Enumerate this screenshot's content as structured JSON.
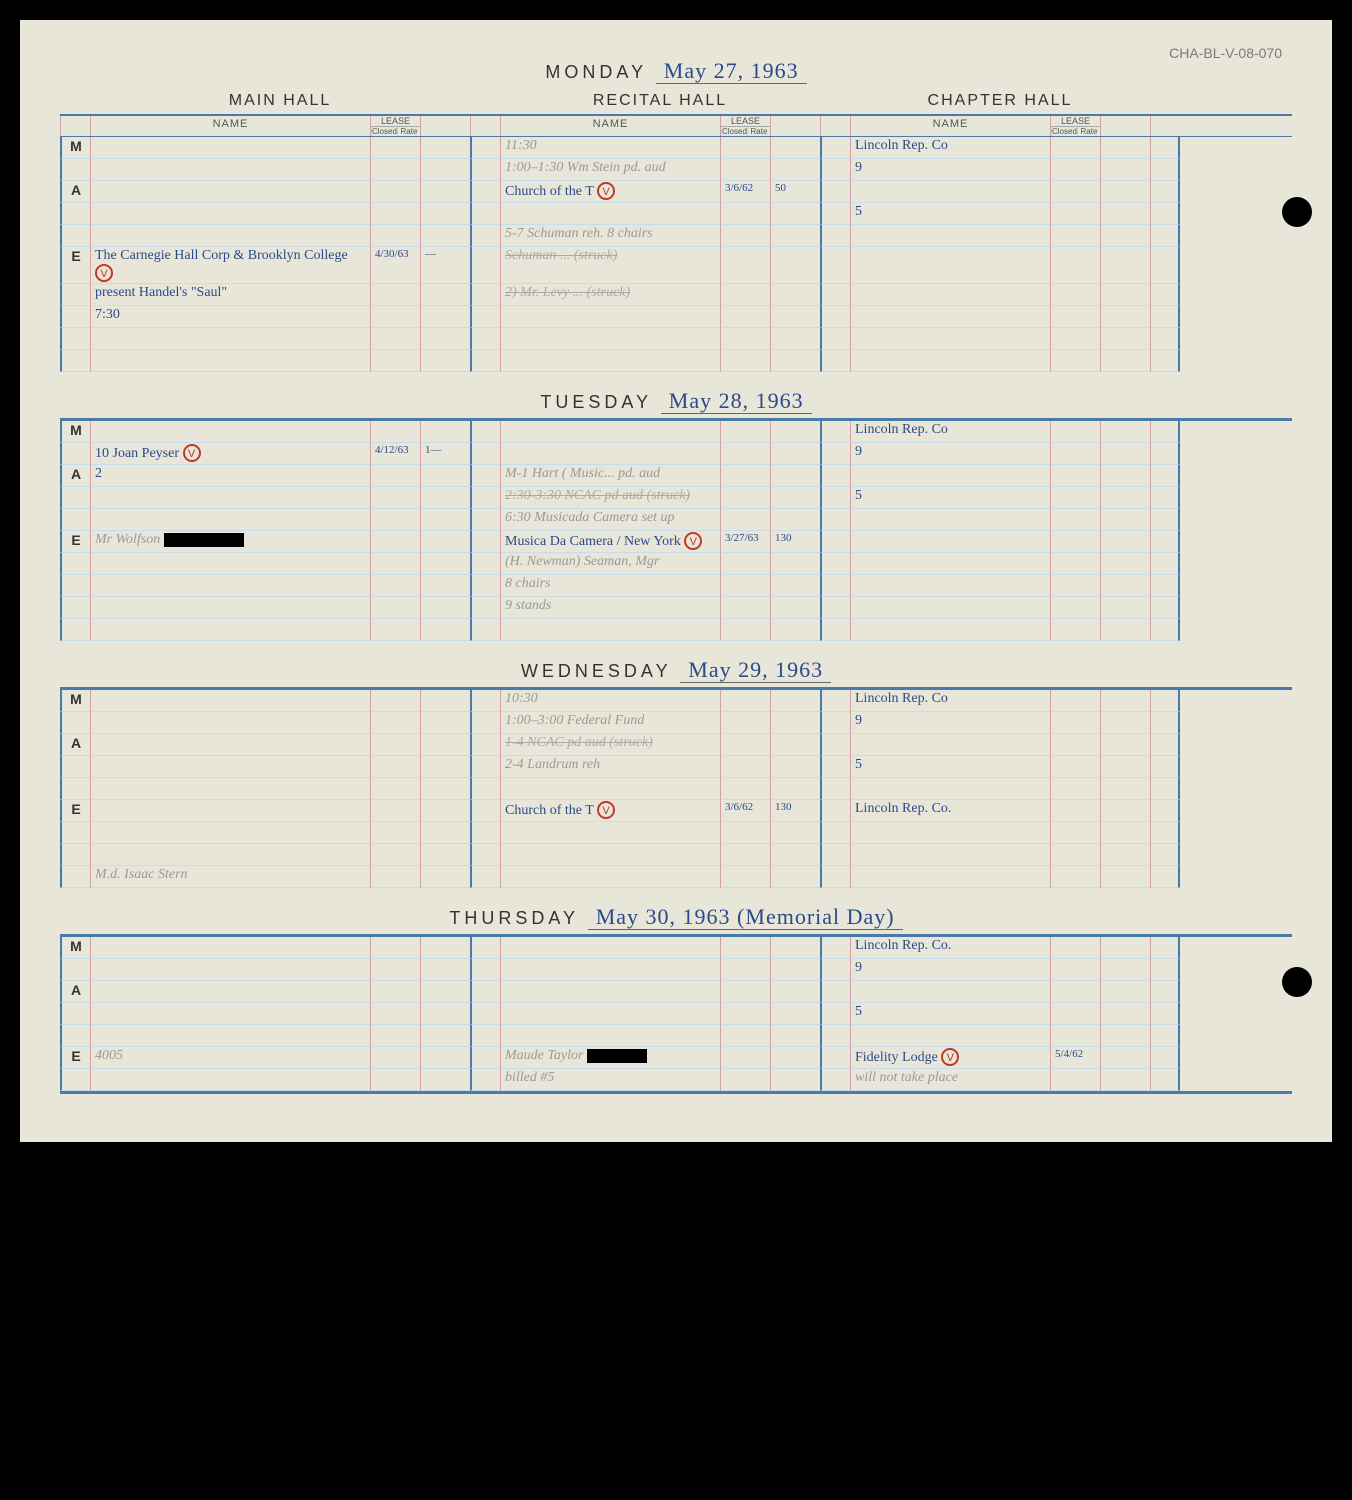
{
  "reference": "CHA-BL-V-08-070",
  "halls": {
    "main": "MAIN HALL",
    "recital": "RECITAL HALL",
    "chapter": "CHAPTER HALL"
  },
  "col_labels": {
    "name": "NAME",
    "lease": "LEASE",
    "closed": "Closed",
    "rate": "Rate"
  },
  "periods": {
    "m": "M",
    "a": "A",
    "e": "E"
  },
  "days": [
    {
      "label": "MONDAY",
      "date": "May 27, 1963",
      "rows": [
        {
          "p": "M",
          "main": "",
          "main_closed": "",
          "main_rate": "",
          "recital": "11:30",
          "recital_note": "pencil",
          "recital_closed": "",
          "recital_rate": "",
          "chapter": "Lincoln Rep. Co",
          "chapter_closed": "",
          "chapter_rate": ""
        },
        {
          "p": "",
          "main": "",
          "recital": "1:00–1:30 Wm Stein pd. aud",
          "recital_note": "pencil",
          "chapter": "9"
        },
        {
          "p": "A",
          "main": "",
          "recital": "Church of the T",
          "recital_mark": "V",
          "recital_closed": "3/6/62",
          "recital_rate": "50",
          "chapter": ""
        },
        {
          "p": "",
          "main": "",
          "recital": "",
          "chapter": "5"
        },
        {
          "p": "",
          "main": "",
          "recital": "5-7 Schuman reh. 8 chairs",
          "recital_note": "pencil",
          "chapter": ""
        },
        {
          "p": "E",
          "main": "The Carnegie Hall Corp & Brooklyn College",
          "main_mark": "V",
          "main_closed": "4/30/63",
          "main_rate": "—",
          "recital": "Schuman ... (struck)",
          "recital_note": "struck",
          "chapter": ""
        },
        {
          "p": "",
          "main": "present Handel's \"Saul\"",
          "recital": "2) Mr. Levy ... (struck)",
          "recital_note": "struck",
          "chapter": ""
        },
        {
          "p": "",
          "main": "7:30",
          "recital": "",
          "chapter": ""
        },
        {
          "p": "",
          "main": "",
          "recital": "",
          "chapter": ""
        },
        {
          "p": "",
          "main": "",
          "recital": "",
          "chapter": ""
        }
      ]
    },
    {
      "label": "TUESDAY",
      "date": "May 28, 1963",
      "rows": [
        {
          "p": "M",
          "main": "",
          "recital": "",
          "chapter": "Lincoln Rep. Co"
        },
        {
          "p": "",
          "main": "10  Joan Peyser",
          "main_mark": "V",
          "main_closed": "4/12/63",
          "main_rate": "1—",
          "recital": "",
          "chapter": "9"
        },
        {
          "p": "A",
          "main": "2",
          "recital": "M-1 Hart ( Music... pd. aud",
          "recital_note": "pencil",
          "chapter": ""
        },
        {
          "p": "",
          "main": "",
          "recital": "2:30-3:30 NCAC pd aud (struck)",
          "recital_note": "struck",
          "chapter": "5"
        },
        {
          "p": "",
          "main": "",
          "recital": "6:30 Musicada Camera set up",
          "recital_note": "pencil",
          "chapter": ""
        },
        {
          "p": "E",
          "main": "Mr Wolfson [REDACTED]",
          "main_note": "pencil",
          "main_redact": 80,
          "recital": "Musica Da Camera / New York",
          "recital_mark": "V",
          "recital_closed": "3/27/63",
          "recital_rate": "130",
          "chapter": ""
        },
        {
          "p": "",
          "main": "",
          "recital": "(H. Newman)  Seaman, Mgr",
          "recital_note": "pencil",
          "chapter": ""
        },
        {
          "p": "",
          "main": "",
          "recital": "8 chairs",
          "recital_note": "pencil",
          "chapter": ""
        },
        {
          "p": "",
          "main": "",
          "recital": "9 stands",
          "recital_note": "pencil",
          "chapter": ""
        },
        {
          "p": "",
          "main": "",
          "recital": "",
          "chapter": ""
        }
      ]
    },
    {
      "label": "WEDNESDAY",
      "date": "May 29, 1963",
      "rows": [
        {
          "p": "M",
          "main": "",
          "recital": "10:30",
          "recital_note": "pencil",
          "chapter": "Lincoln Rep. Co"
        },
        {
          "p": "",
          "main": "",
          "recital": "1:00–3:00 Federal Fund",
          "recital_note": "pencil",
          "chapter": "9"
        },
        {
          "p": "A",
          "main": "",
          "recital": "1-4 NCAC pd aud (struck)",
          "recital_note": "struck",
          "chapter": ""
        },
        {
          "p": "",
          "main": "",
          "recital": "2-4 Landrum reh",
          "recital_note": "pencil",
          "chapter": "5"
        },
        {
          "p": "",
          "main": "",
          "recital": "",
          "chapter": ""
        },
        {
          "p": "E",
          "main": "",
          "recital": "Church of the T",
          "recital_mark": "V",
          "recital_closed": "3/6/62",
          "recital_rate": "130",
          "chapter": "Lincoln Rep. Co."
        },
        {
          "p": "",
          "main": "",
          "recital": "",
          "chapter": ""
        },
        {
          "p": "",
          "main": "",
          "recital": "",
          "chapter": ""
        },
        {
          "p": "",
          "main": "M.d. Isaac Stern",
          "main_note": "pencil",
          "recital": "",
          "chapter": ""
        }
      ]
    },
    {
      "label": "THURSDAY",
      "date": "May 30, 1963 (Memorial Day)",
      "rows": [
        {
          "p": "M",
          "main": "",
          "recital": "",
          "chapter": "Lincoln Rep. Co."
        },
        {
          "p": "",
          "main": "",
          "recital": "",
          "chapter": "9"
        },
        {
          "p": "A",
          "main": "",
          "recital": "",
          "chapter": ""
        },
        {
          "p": "",
          "main": "",
          "recital": "",
          "chapter": "5"
        },
        {
          "p": "",
          "main": "",
          "recital": "",
          "chapter": ""
        },
        {
          "p": "E",
          "main": "4005",
          "main_note": "pencil",
          "recital": "Maude Taylor [REDACTED]",
          "recital_note": "pencil",
          "recital_redact": 60,
          "chapter": "Fidelity Lodge",
          "chapter_mark": "V",
          "chapter_closed": "5/4/62"
        },
        {
          "p": "",
          "main": "",
          "recital": "billed #5",
          "recital_note": "pencil",
          "chapter": "will not take place",
          "chapter_note": "pencil"
        }
      ]
    }
  ],
  "colors": {
    "page_bg": "#e8e6d8",
    "blue_rule": "#4a7ba8",
    "pink_rule": "#d4a0a8",
    "light_blue_rule": "#c8dcec",
    "ink": "#2a4a8a",
    "pencil": "#999999",
    "circle": "#c0392b"
  }
}
